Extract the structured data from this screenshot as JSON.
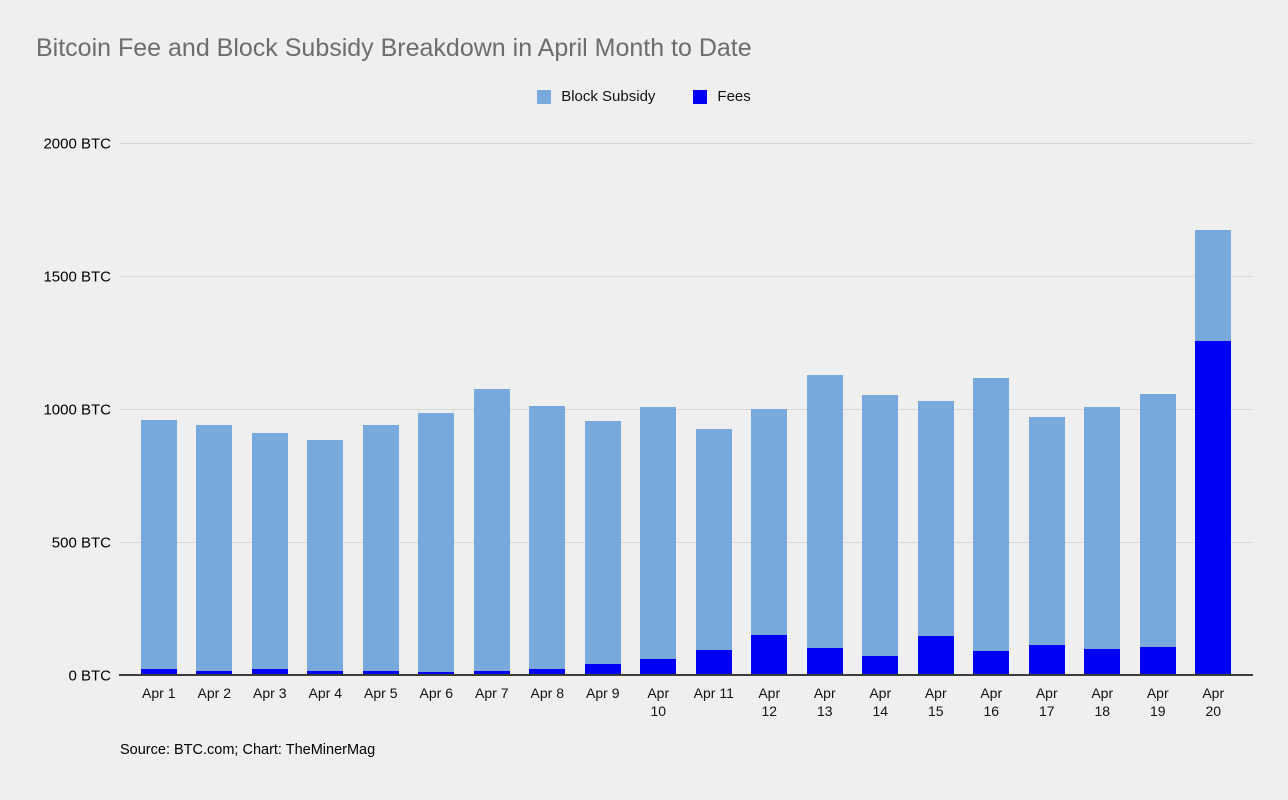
{
  "page": {
    "background": "#efefef",
    "title": "Bitcoin Fee and Block Subsidy Breakdown in April Month to Date",
    "title_color": "#6d6d6d",
    "source_note": "Source: BTC.com; Chart: TheMinerMag"
  },
  "legend": {
    "position": "top-center",
    "items": [
      {
        "label": "Block Subsidy",
        "color": "#78a9dc"
      },
      {
        "label": "Fees",
        "color": "#0000f5"
      }
    ]
  },
  "chart_data": {
    "type": "bar",
    "stacked": true,
    "title": "Bitcoin Fee and Block Subsidy Breakdown in April Month to Date",
    "unit": "BTC",
    "grid": true,
    "legend_position": "top",
    "xlabel": "",
    "ylabel": "",
    "ylim": [
      0,
      2000
    ],
    "y_ticks": [
      {
        "value": 0,
        "label": "0 BTC"
      },
      {
        "value": 500,
        "label": "500 BTC"
      },
      {
        "value": 1000,
        "label": "1000 BTC"
      },
      {
        "value": 1500,
        "label": "1500 BTC"
      },
      {
        "value": 2000,
        "label": "2000 BTC"
      }
    ],
    "categories": [
      "Apr 1",
      "Apr 2",
      "Apr 3",
      "Apr 4",
      "Apr 5",
      "Apr 6",
      "Apr 7",
      "Apr 8",
      "Apr 9",
      "Apr 10",
      "Apr 11",
      "Apr 12",
      "Apr 13",
      "Apr 14",
      "Apr 15",
      "Apr 16",
      "Apr 17",
      "Apr 18",
      "Apr 19",
      "Apr 20"
    ],
    "category_labels_wrapped": [
      "Apr 1",
      "Apr 2",
      "Apr 3",
      "Apr 4",
      "Apr 5",
      "Apr 6",
      "Apr 7",
      "Apr 8",
      "Apr 9",
      "Apr\n10",
      "Apr 11",
      "Apr\n12",
      "Apr\n13",
      "Apr\n14",
      "Apr\n15",
      "Apr\n16",
      "Apr\n17",
      "Apr\n18",
      "Apr\n19",
      "Apr\n20"
    ],
    "stack_order_bottom_to_top": [
      "Fees",
      "Block Subsidy"
    ],
    "series": [
      {
        "name": "Fees",
        "color": "#0000f5",
        "values": [
          25,
          20,
          26,
          18,
          20,
          14,
          20,
          28,
          44,
          64,
          98,
          153,
          106,
          74,
          150,
          95,
          116,
          103,
          110,
          1260
        ]
      },
      {
        "name": "Block Subsidy",
        "color": "#78a9dc",
        "values": [
          937,
          924,
          887,
          869,
          924,
          974,
          1059,
          987,
          914,
          947,
          830,
          851,
          1025,
          982,
          884,
          1025,
          858,
          908,
          950,
          415
        ]
      }
    ],
    "totals": [
      962,
      944,
      913,
      887,
      944,
      988,
      1079,
      1015,
      958,
      1011,
      928,
      1004,
      1131,
      1056,
      1034,
      1120,
      974,
      1011,
      1060,
      1675
    ]
  }
}
